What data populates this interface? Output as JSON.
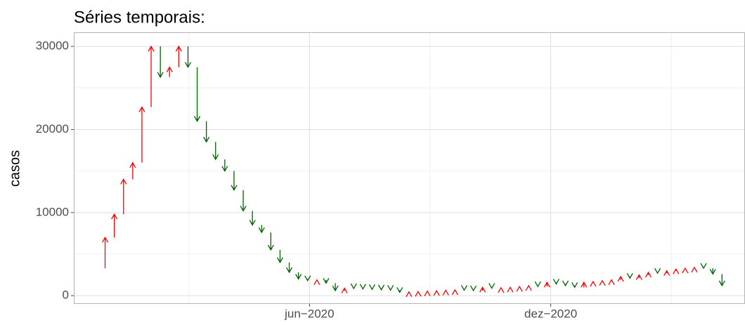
{
  "chart_data": {
    "type": "arrow",
    "title": "Séries temporais:",
    "y_label": "casos",
    "start": 3300,
    "x": [
      1,
      2,
      3,
      4,
      5,
      6,
      7,
      8,
      9,
      10,
      11,
      12,
      13,
      14,
      15,
      16,
      17,
      18,
      19,
      20,
      21,
      22,
      23,
      24,
      25,
      26,
      27,
      28,
      29,
      30,
      31,
      32,
      33,
      34,
      35,
      36,
      37,
      38,
      39,
      40,
      41,
      42,
      43,
      44,
      45,
      46,
      47,
      48,
      49,
      50,
      51,
      52,
      53,
      54,
      55,
      56,
      57,
      58,
      59,
      60,
      61,
      62,
      63,
      64,
      65,
      66,
      67,
      68
    ],
    "values": [
      7000,
      9800,
      14000,
      16000,
      22700,
      30000,
      26300,
      27500,
      30000,
      27500,
      21000,
      18500,
      16400,
      15000,
      12700,
      10200,
      8500,
      7600,
      5500,
      4000,
      2800,
      2000,
      1800,
      1900,
      1500,
      600,
      900,
      850,
      800,
      750,
      700,
      650,
      400,
      450,
      500,
      550,
      600,
      650,
      700,
      650,
      600,
      1000,
      900,
      950,
      1000,
      1100,
      1200,
      1100,
      1600,
      1400,
      1200,
      1000,
      1600,
      1700,
      1800,
      1900,
      2300,
      2100,
      2500,
      2800,
      2700,
      3000,
      3200,
      3300,
      3400,
      3300,
      2600,
      1200
    ],
    "up_color": "#ff0000",
    "down_color": "#006400",
    "xlim": [
      -2.4,
      70.5
    ],
    "xticks": [
      {
        "value": 23.2,
        "label": "jun−2020"
      },
      {
        "value": 49.4,
        "label": "dez−2020"
      }
    ],
    "x_minor_ticks": [
      10.1,
      36.3,
      62.5
    ],
    "ylim": [
      -1000,
      31700
    ],
    "yticks": [
      0,
      10000,
      20000,
      30000
    ],
    "y_minor_ticks": [
      5000,
      15000,
      25000
    ],
    "grid": true
  }
}
